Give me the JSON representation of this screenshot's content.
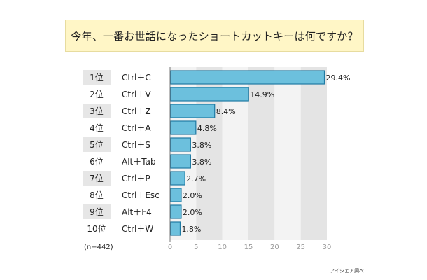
{
  "chart_data": {
    "type": "bar",
    "orientation": "horizontal",
    "title": "今年、一番お世話になったショートカットキーは何ですか？",
    "ranks": [
      "1位",
      "2位",
      "3位",
      "4位",
      "5位",
      "6位",
      "7位",
      "8位",
      "9位",
      "10位"
    ],
    "categories": [
      "Ctrl＋C",
      "Ctrl＋V",
      "Ctrl＋Z",
      "Ctrl＋A",
      "Ctrl＋S",
      "Alt＋Tab",
      "Ctrl＋P",
      "Ctrl＋Esc",
      "Alt＋F4",
      "Ctrl＋W"
    ],
    "values": [
      29.4,
      14.9,
      8.4,
      4.8,
      3.8,
      3.8,
      2.7,
      2.0,
      2.0,
      1.8
    ],
    "value_labels": [
      "29.4%",
      "14.9%",
      "8.4%",
      "4.8%",
      "3.8%",
      "3.8%",
      "2.7%",
      "2.0%",
      "2.0%",
      "1.8%"
    ],
    "xlim": [
      0,
      30
    ],
    "xticks": [
      "0",
      "5",
      "10",
      "15",
      "20",
      "25",
      "30"
    ],
    "sample_note": "(n=442)",
    "grid": "alternating vertical bands",
    "colors": {
      "bar": "#6cc0dd",
      "bar_edge": "#1f7aa3",
      "band_light": "#f3f3f3",
      "band_dark": "#e4e4e4",
      "rank_shade": "#e6e6e6",
      "title_bg": "#fff6c6"
    }
  },
  "footnote": "アイシェア調べ"
}
